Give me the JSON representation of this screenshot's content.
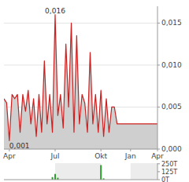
{
  "chart_data": [
    {
      "type": "line",
      "categories": [
        null,
        null,
        "Apr",
        null,
        null,
        null,
        null,
        null,
        null,
        null,
        null,
        null,
        null,
        null,
        null,
        null,
        null,
        null,
        null,
        "Jul",
        null,
        null,
        null,
        null,
        null,
        null,
        null,
        null,
        null,
        null,
        null,
        null,
        null,
        null,
        null,
        null,
        "Okt",
        null,
        null,
        null,
        null,
        null,
        null,
        null,
        null,
        null,
        null,
        "Jan",
        null,
        null,
        null,
        null,
        null,
        null,
        null,
        null,
        null,
        "Apr"
      ],
      "values": [
        0.006,
        0.0055,
        0.001,
        0.0065,
        0.006,
        0.0065,
        0.002,
        0.0065,
        0.0045,
        0.007,
        0.003,
        0.006,
        0.0015,
        0.0065,
        0.002,
        0.0105,
        0.003,
        0.0065,
        0.002,
        0.016,
        0.004,
        0.0065,
        0.0025,
        0.0125,
        0.005,
        0.015,
        0.002,
        0.0135,
        0.003,
        0.0065,
        0.0055,
        0.002,
        0.0115,
        0.003,
        0.0065,
        0.002,
        0.007,
        0.0015,
        0.006,
        0.002,
        0.005,
        0.005,
        0.003,
        0.003,
        0.003,
        0.003,
        0.003,
        0.003,
        0.003,
        0.003,
        0.003,
        0.003,
        0.003,
        0.003,
        0.003,
        0.003,
        0.003,
        0.003
      ],
      "color": "#cc1f1f",
      "ylim": [
        0,
        0.017
      ],
      "yticks": [
        {
          "value": 0,
          "label": "0,000"
        },
        {
          "value": 0.005,
          "label": "0,005"
        },
        {
          "value": 0.01,
          "label": "0,010"
        },
        {
          "value": 0.015,
          "label": "0,015"
        }
      ],
      "grid": true,
      "annotations": [
        {
          "value": 0.016,
          "label": "0,016"
        },
        {
          "value": 0.001,
          "label": "0,001"
        }
      ]
    },
    {
      "type": "bar",
      "categories": [
        null,
        null,
        null,
        null,
        null,
        null,
        null,
        null,
        null,
        null,
        null,
        null,
        null,
        null,
        null,
        null,
        null,
        null,
        null,
        null,
        null,
        null,
        null,
        null,
        null,
        null,
        null,
        null,
        null,
        null,
        null,
        null,
        null,
        null,
        null,
        null,
        null,
        null,
        null,
        null,
        null,
        null,
        null,
        null,
        null,
        null,
        null,
        null,
        null,
        null,
        null,
        null,
        null,
        null,
        null,
        null,
        null,
        null
      ],
      "values": [
        0,
        0,
        0,
        0,
        0,
        0,
        0,
        0,
        0,
        0,
        0,
        0,
        0,
        0,
        0,
        0,
        0,
        0,
        40000,
        90000,
        30000,
        0,
        0,
        0,
        0,
        0,
        0,
        0,
        0,
        0,
        0,
        0,
        0,
        0,
        0,
        0,
        230000,
        20000,
        0,
        0,
        0,
        0,
        0,
        0,
        0,
        0,
        0,
        0,
        0,
        0,
        0,
        0,
        0,
        0,
        0,
        0,
        0,
        0
      ],
      "color": "#2e9e2e",
      "ylim": [
        0,
        260000
      ],
      "yticks": [
        {
          "value": 0,
          "label": "0T"
        },
        {
          "value": 125000,
          "label": "125T"
        },
        {
          "value": 250000,
          "label": "250T"
        }
      ],
      "tick_labels": "y"
    }
  ]
}
